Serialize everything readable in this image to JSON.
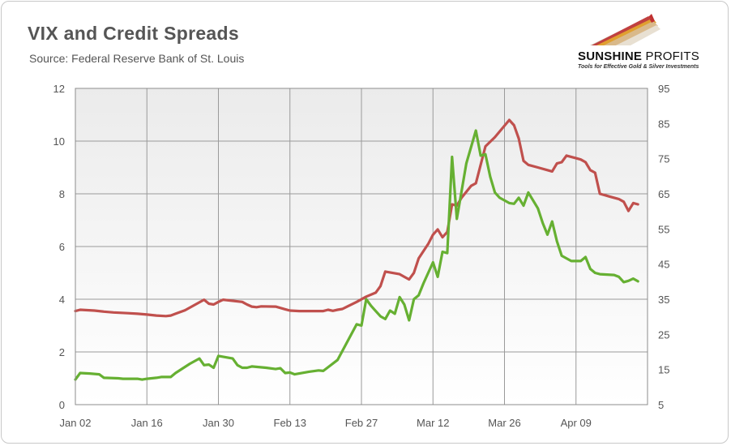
{
  "chart_data": {
    "type": "line",
    "title": "VIX and Credit Spreads",
    "subtitle": "Source: Federal Reserve Bank of St. Louis",
    "x_tick_labels": [
      "Jan 02",
      "Jan 16",
      "Jan 30",
      "Feb 13",
      "Feb 27",
      "Mar 12",
      "Mar 26",
      "Apr 09"
    ],
    "y_left": {
      "ticks": [
        "0",
        "2",
        "4",
        "6",
        "8",
        "10",
        "12"
      ],
      "range": [
        0,
        12
      ]
    },
    "y_right": {
      "ticks": [
        "5",
        "15",
        "25",
        "35",
        "45",
        "55",
        "65",
        "75",
        "85",
        "95"
      ],
      "range": [
        5,
        95
      ]
    },
    "grid": true,
    "series": [
      {
        "axis": "left",
        "color": "#c0504d",
        "points": [
          [
            0,
            3.55
          ],
          [
            1,
            3.6
          ],
          [
            4,
            3.57
          ],
          [
            6,
            3.53
          ],
          [
            8,
            3.5
          ],
          [
            11,
            3.47
          ],
          [
            13,
            3.45
          ],
          [
            15,
            3.42
          ],
          [
            17,
            3.38
          ],
          [
            19,
            3.36
          ],
          [
            20,
            3.38
          ],
          [
            21,
            3.45
          ],
          [
            23,
            3.58
          ],
          [
            27,
            3.98
          ],
          [
            28,
            3.83
          ],
          [
            29,
            3.8
          ],
          [
            30,
            3.9
          ],
          [
            31,
            3.98
          ],
          [
            35,
            3.9
          ],
          [
            36,
            3.8
          ],
          [
            37,
            3.72
          ],
          [
            38,
            3.7
          ],
          [
            39,
            3.73
          ],
          [
            42,
            3.72
          ],
          [
            44,
            3.62
          ],
          [
            45,
            3.57
          ],
          [
            47,
            3.55
          ],
          [
            52,
            3.55
          ],
          [
            53,
            3.6
          ],
          [
            54,
            3.56
          ],
          [
            55,
            3.6
          ],
          [
            56,
            3.63
          ],
          [
            57,
            3.72
          ],
          [
            59,
            3.9
          ],
          [
            61,
            4.1
          ],
          [
            63,
            4.25
          ],
          [
            64,
            4.5
          ],
          [
            65,
            5.05
          ],
          [
            68,
            4.95
          ],
          [
            69,
            4.85
          ],
          [
            70,
            4.75
          ],
          [
            71,
            5.0
          ],
          [
            72,
            5.55
          ],
          [
            74,
            6.1
          ],
          [
            75,
            6.45
          ],
          [
            76,
            6.65
          ],
          [
            77,
            6.35
          ],
          [
            78,
            6.55
          ],
          [
            79,
            7.6
          ],
          [
            80,
            7.55
          ],
          [
            81,
            7.85
          ],
          [
            83,
            8.3
          ],
          [
            84,
            8.4
          ],
          [
            86,
            9.8
          ],
          [
            88,
            10.15
          ],
          [
            91,
            10.8
          ],
          [
            92,
            10.6
          ],
          [
            93,
            10.1
          ],
          [
            94,
            9.25
          ],
          [
            95,
            9.1
          ],
          [
            97,
            9.0
          ],
          [
            99,
            8.9
          ],
          [
            100,
            8.85
          ],
          [
            101,
            9.15
          ],
          [
            102,
            9.2
          ],
          [
            103,
            9.45
          ],
          [
            105,
            9.35
          ],
          [
            106,
            9.3
          ],
          [
            107,
            9.2
          ],
          [
            108,
            8.9
          ],
          [
            109,
            8.8
          ],
          [
            110,
            8.0
          ],
          [
            111,
            7.95
          ],
          [
            112,
            7.9
          ],
          [
            114,
            7.8
          ],
          [
            115,
            7.7
          ],
          [
            116,
            7.35
          ],
          [
            117,
            7.65
          ],
          [
            118,
            7.6
          ]
        ]
      },
      {
        "axis": "left",
        "color": "#66b032",
        "points": [
          [
            0,
            0.95
          ],
          [
            1,
            1.2
          ],
          [
            3,
            1.18
          ],
          [
            5,
            1.15
          ],
          [
            6,
            1.02
          ],
          [
            9,
            1.0
          ],
          [
            10,
            0.98
          ],
          [
            13,
            0.98
          ],
          [
            14,
            0.95
          ],
          [
            15,
            0.98
          ],
          [
            17,
            1.02
          ],
          [
            18,
            1.05
          ],
          [
            20,
            1.05
          ],
          [
            21,
            1.2
          ],
          [
            24,
            1.55
          ],
          [
            26,
            1.75
          ],
          [
            27,
            1.5
          ],
          [
            28,
            1.52
          ],
          [
            29,
            1.4
          ],
          [
            30,
            1.85
          ],
          [
            33,
            1.75
          ],
          [
            34,
            1.5
          ],
          [
            35,
            1.4
          ],
          [
            36,
            1.4
          ],
          [
            37,
            1.45
          ],
          [
            40,
            1.4
          ],
          [
            42,
            1.35
          ],
          [
            43,
            1.38
          ],
          [
            44,
            1.2
          ],
          [
            45,
            1.22
          ],
          [
            46,
            1.15
          ],
          [
            49,
            1.25
          ],
          [
            51,
            1.3
          ],
          [
            52,
            1.28
          ],
          [
            53,
            1.42
          ],
          [
            55,
            1.7
          ],
          [
            59,
            3.05
          ],
          [
            60,
            3.0
          ],
          [
            61,
            4.0
          ],
          [
            62,
            3.75
          ],
          [
            63,
            3.55
          ],
          [
            64,
            3.35
          ],
          [
            65,
            3.25
          ],
          [
            66,
            3.57
          ],
          [
            67,
            3.45
          ],
          [
            68,
            4.08
          ],
          [
            69,
            3.8
          ],
          [
            70,
            3.2
          ],
          [
            71,
            4.0
          ],
          [
            72,
            4.15
          ],
          [
            73,
            4.6
          ],
          [
            75,
            5.4
          ],
          [
            76,
            4.85
          ],
          [
            77,
            5.8
          ],
          [
            78,
            5.75
          ],
          [
            79,
            9.4
          ],
          [
            80,
            7.05
          ],
          [
            82,
            9.15
          ],
          [
            84,
            10.4
          ],
          [
            85,
            9.45
          ],
          [
            86,
            9.5
          ],
          [
            87,
            8.65
          ],
          [
            88,
            8.05
          ],
          [
            89,
            7.85
          ],
          [
            91,
            7.65
          ],
          [
            92,
            7.62
          ],
          [
            93,
            7.85
          ],
          [
            94,
            7.55
          ],
          [
            95,
            8.05
          ],
          [
            97,
            7.45
          ],
          [
            98,
            6.9
          ],
          [
            99,
            6.45
          ],
          [
            100,
            6.95
          ],
          [
            101,
            6.2
          ],
          [
            102,
            5.65
          ],
          [
            103,
            5.55
          ],
          [
            104,
            5.45
          ],
          [
            106,
            5.45
          ],
          [
            107,
            5.6
          ],
          [
            108,
            5.15
          ],
          [
            109,
            5.0
          ],
          [
            110,
            4.95
          ],
          [
            113,
            4.92
          ],
          [
            114,
            4.85
          ],
          [
            115,
            4.65
          ],
          [
            116,
            4.7
          ],
          [
            117,
            4.78
          ],
          [
            118,
            4.68
          ]
        ]
      }
    ]
  },
  "logo": {
    "name_bold": "SUNSHINE",
    "name_light": " PROFITS",
    "tagline": "Tools for Effective Gold & Silver Investments"
  }
}
